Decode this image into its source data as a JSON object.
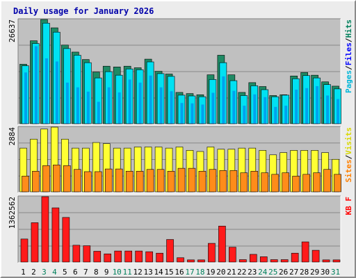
{
  "chart_data": {
    "type": "bar",
    "title": "Daily usage for January 2026",
    "categories": [
      "1",
      "2",
      "3",
      "4",
      "5",
      "6",
      "7",
      "8",
      "9",
      "10",
      "11",
      "12",
      "13",
      "14",
      "15",
      "16",
      "17",
      "18",
      "19",
      "20",
      "21",
      "22",
      "23",
      "24",
      "25",
      "26",
      "27",
      "28",
      "29",
      "30",
      "31"
    ],
    "weekend_days": [
      "3",
      "4",
      "10",
      "11",
      "17",
      "18",
      "24",
      "25",
      "31"
    ],
    "panels": [
      {
        "id": "hits",
        "ymax_label": "26637",
        "ylim": [
          0,
          26637
        ],
        "legend": [
          {
            "text": "Pages",
            "color": "#00b6d8"
          },
          {
            "text": "Files",
            "color": "#0000ff"
          },
          {
            "text": "Hits",
            "color": "#00805c"
          }
        ],
        "series": [
          {
            "name": "Hits",
            "color": "#1f8a64",
            "values": [
              15200,
              21200,
              26637,
              24500,
              20100,
              18300,
              16400,
              13200,
              14700,
              14500,
              14700,
              14300,
              16500,
              13400,
              12700,
              8000,
              7700,
              7400,
              12500,
              17500,
              12500,
              8000,
              10500,
              9500,
              7200,
              7400,
              12200,
              13100,
              12400,
              10700,
              9600
            ]
          },
          {
            "name": "Pages",
            "color": "#00e1f2",
            "values": [
              14800,
              20500,
              25700,
              23400,
              19200,
              17500,
              15600,
              11700,
              13300,
              12400,
              14000,
              13800,
              15800,
              12800,
              12100,
              7300,
              7100,
              6900,
              11300,
              15600,
              11000,
              7200,
              9700,
              8700,
              6900,
              7300,
              11500,
              12300,
              11700,
              10000,
              8900
            ]
          },
          {
            "name": "Files",
            "color": "#0000e6",
            "values": [
              13100,
              19800,
              16700,
              15900,
              10500,
              9300,
              8200,
              5600,
              9300,
              8000,
              11300,
              10500,
              12300,
              9300,
              8300,
              5300,
              5200,
              4900,
              7900,
              12100,
              8400,
              4600,
              7500,
              6800,
              4300,
              4600,
              8700,
              9100,
              9600,
              7200,
              6300
            ]
          }
        ]
      },
      {
        "id": "visits",
        "ymax_label": "2884",
        "ylim": [
          0,
          2884
        ],
        "legend": [
          {
            "text": "Sites",
            "color": "#ff8000"
          },
          {
            "text": "Visits",
            "color": "#d8d800"
          }
        ],
        "series": [
          {
            "name": "Visits",
            "color": "#ffff33",
            "values": [
              1950,
              2350,
              2800,
              2884,
              2350,
              1950,
              1950,
              2200,
              2150,
              1950,
              1950,
              2000,
              2000,
              2000,
              1950,
              2000,
              1850,
              1800,
              2000,
              1900,
              1900,
              1950,
              1950,
              1850,
              1650,
              1750,
              1850,
              1850,
              1850,
              1750,
              1450
            ]
          },
          {
            "name": "Sites",
            "color": "#ff8c1a",
            "values": [
              700,
              920,
              1170,
              1200,
              1170,
              1000,
              900,
              900,
              1020,
              1020,
              920,
              920,
              1000,
              1000,
              920,
              1050,
              1050,
              920,
              1000,
              950,
              950,
              850,
              920,
              850,
              780,
              850,
              700,
              780,
              850,
              1000,
              780
            ]
          }
        ]
      },
      {
        "id": "kbytes",
        "ymax_label": "1362562",
        "ylim": [
          0,
          1362562
        ],
        "legend": [
          {
            "text": "KB F",
            "color": "#ff0000"
          }
        ],
        "series": [
          {
            "name": "KB F",
            "color": "#ff1a1a",
            "values": [
              480000,
              820000,
              1362562,
              1130000,
              930000,
              350000,
              340000,
              225000,
              170000,
              230000,
              230000,
              230000,
              215000,
              185000,
              470000,
              90000,
              45000,
              45000,
              390000,
              750000,
              310000,
              50000,
              160000,
              110000,
              50000,
              50000,
              185000,
              420000,
              245000,
              45000,
              45000
            ]
          }
        ]
      }
    ]
  }
}
